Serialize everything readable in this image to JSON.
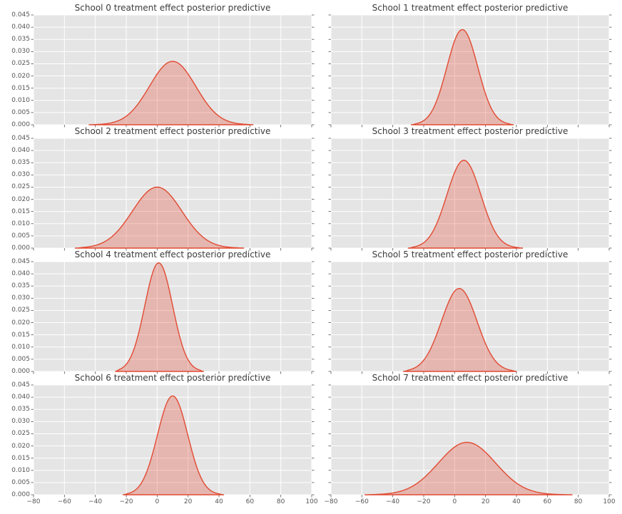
{
  "chart_data": {
    "type": "area",
    "description": "Kernel density estimates of treatment effect posterior predictive distributions, one subplot per school",
    "layout": {
      "rows": 4,
      "cols": 2,
      "shared_x": true,
      "shared_y": true,
      "grid": true,
      "legend": false
    },
    "xlim": [
      -80,
      100
    ],
    "ylim": [
      0,
      0.045
    ],
    "x_ticks": [
      -80,
      -60,
      -40,
      -20,
      0,
      20,
      40,
      60,
      80,
      100
    ],
    "x_tick_labels": [
      "−80",
      "−60",
      "−40",
      "−20",
      "0",
      "20",
      "40",
      "60",
      "80",
      "100"
    ],
    "y_ticks": [
      0,
      0.005,
      0.01,
      0.015,
      0.02,
      0.025,
      0.03,
      0.035,
      0.04,
      0.045
    ],
    "y_tick_labels": [
      "0.000",
      "0.005",
      "0.010",
      "0.015",
      "0.020",
      "0.025",
      "0.030",
      "0.035",
      "0.040",
      "0.045"
    ],
    "style": {
      "figure_bg": "#ffffff",
      "plot_bg": "#e5e5e5",
      "grid_color": "#ffffff",
      "curve_color": "#e24a33",
      "fill_color": "rgba(226,74,51,0.30)",
      "tick_color": "#555555",
      "tick_label_color": "#555555",
      "title_color": "#3b3b3b"
    },
    "subplots": [
      {
        "school": 0,
        "title": "School 0 treatment effect posterior predictive",
        "mean": 10,
        "sd": 15,
        "peak": 0.026,
        "x_range": [
          -44,
          62
        ]
      },
      {
        "school": 1,
        "title": "School 1 treatment effect posterior predictive",
        "mean": 5,
        "sd": 10,
        "peak": 0.039,
        "x_range": [
          -28,
          38
        ]
      },
      {
        "school": 2,
        "title": "School 2 treatment effect posterior predictive",
        "mean": 0,
        "sd": 16,
        "peak": 0.025,
        "x_range": [
          -53,
          56
        ]
      },
      {
        "school": 3,
        "title": "School 3 treatment effect posterior predictive",
        "mean": 6,
        "sd": 11,
        "peak": 0.036,
        "x_range": [
          -30,
          44
        ]
      },
      {
        "school": 4,
        "title": "School 4 treatment effect posterior predictive",
        "mean": 1,
        "sd": 9,
        "peak": 0.0445,
        "x_range": [
          -27,
          30
        ]
      },
      {
        "school": 5,
        "title": "School 5 treatment effect posterior predictive",
        "mean": 3,
        "sd": 11.5,
        "peak": 0.034,
        "x_range": [
          -33,
          40
        ]
      },
      {
        "school": 6,
        "title": "School 6 treatment effect posterior predictive",
        "mean": 10,
        "sd": 9.8,
        "peak": 0.0405,
        "x_range": [
          -22,
          43
        ]
      },
      {
        "school": 7,
        "title": "School 7 treatment effect posterior predictive",
        "mean": 8,
        "sd": 18.5,
        "peak": 0.0215,
        "x_range": [
          -58,
          76
        ]
      }
    ]
  }
}
